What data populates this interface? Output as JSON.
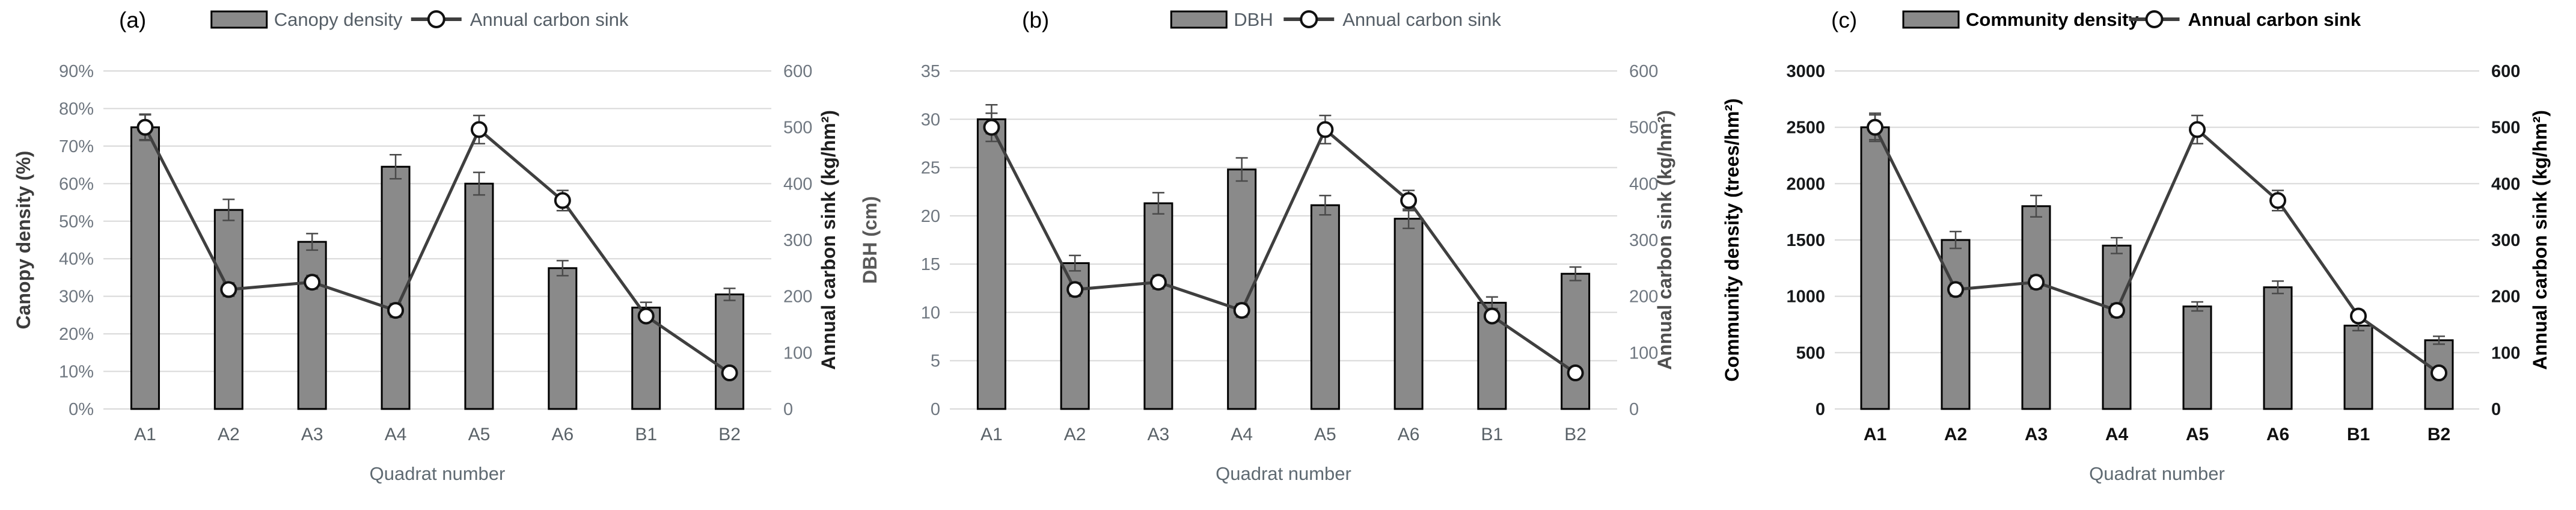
{
  "figure": {
    "description": "Three-panel dual-axis figure: grey bars with error bars (stand attribute, left axis) overlaid with annual carbon sink line with open circle markers (right axis) across eight quadrats",
    "x_axis_title": "Quadrat number",
    "categories": [
      "A1",
      "A2",
      "A3",
      "A4",
      "A5",
      "A6",
      "B1",
      "B2"
    ]
  },
  "colors": {
    "bar_fill": "#8a8a8a",
    "bar_stroke": "#000000",
    "line": "#3f3f3f",
    "marker_fill": "#ffffff",
    "marker_stroke": "#111111",
    "grid": "#d8d8d8",
    "error_bar": "#4a4a4a",
    "background": "#ffffff"
  },
  "chart_data": [
    {
      "id": "a",
      "panel_label": "(a)",
      "type": "bar+line (dual axis)",
      "categories": [
        "A1",
        "A2",
        "A3",
        "A4",
        "A5",
        "A6",
        "B1",
        "B2"
      ],
      "x_axis_title": "Quadrat number",
      "bar_series": {
        "name": "Canopy density",
        "axis": "left",
        "values": [
          75,
          53,
          44.5,
          64.5,
          60,
          37.5,
          27,
          30.5
        ],
        "errors": [
          3.5,
          2.8,
          2.2,
          3.2,
          3.0,
          2.0,
          1.4,
          1.6
        ]
      },
      "line_series": {
        "name": "Annual carbon sink",
        "axis": "right",
        "values": [
          500,
          212,
          225,
          175,
          496,
          370,
          165,
          64
        ],
        "errors": [
          22,
          12,
          12,
          12,
          25,
          18,
          10,
          8
        ]
      },
      "left_axis": {
        "title": "Canopy density (%)",
        "min": 0,
        "max": 90,
        "step": 10,
        "tick_labels": [
          "0%",
          "10%",
          "20%",
          "30%",
          "40%",
          "50%",
          "60%",
          "70%",
          "80%",
          "90%"
        ]
      },
      "right_axis": {
        "title": "Annual carbon sink (kg/hm²)",
        "min": 0,
        "max": 600,
        "step": 100,
        "tick_labels": [
          "0",
          "100",
          "200",
          "300",
          "400",
          "500",
          "600"
        ]
      },
      "grid": "horizontal"
    },
    {
      "id": "b",
      "panel_label": "(b)",
      "type": "bar+line (dual axis)",
      "categories": [
        "A1",
        "A2",
        "A3",
        "A4",
        "A5",
        "A6",
        "B1",
        "B2"
      ],
      "x_axis_title": "Quadrat number",
      "bar_series": {
        "name": "DBH",
        "axis": "left",
        "values": [
          30,
          15.1,
          21.3,
          24.8,
          21.1,
          19.7,
          11,
          14
        ],
        "errors": [
          1.5,
          0.8,
          1.1,
          1.2,
          1.0,
          1.0,
          0.6,
          0.7
        ]
      },
      "line_series": {
        "name": "Annual carbon sink",
        "axis": "right",
        "values": [
          500,
          212,
          225,
          175,
          496,
          370,
          165,
          64
        ],
        "errors": [
          25,
          12,
          12,
          12,
          25,
          18,
          10,
          8
        ]
      },
      "left_axis": {
        "title": "DBH (cm)",
        "min": 0,
        "max": 35,
        "step": 5,
        "tick_labels": [
          "0",
          "5",
          "10",
          "15",
          "20",
          "25",
          "30",
          "35"
        ]
      },
      "right_axis": {
        "title": "Annual carbon sink (kg/hm²)",
        "min": 0,
        "max": 600,
        "step": 100,
        "tick_labels": [
          "0",
          "100",
          "200",
          "300",
          "400",
          "500",
          "600"
        ]
      },
      "grid": "horizontal"
    },
    {
      "id": "c",
      "panel_label": "(c)",
      "type": "bar+line (dual axis)",
      "categories": [
        "A1",
        "A2",
        "A3",
        "A4",
        "A5",
        "A6",
        "B1",
        "B2"
      ],
      "x_axis_title": "Quadrat number",
      "bar_series": {
        "name": "Community density",
        "axis": "left",
        "values": [
          2500,
          1500,
          1800,
          1450,
          910,
          1080,
          740,
          610
        ],
        "errors": [
          110,
          75,
          95,
          70,
          40,
          55,
          45,
          35
        ]
      },
      "line_series": {
        "name": "Annual carbon sink",
        "axis": "right",
        "values": [
          500,
          212,
          225,
          175,
          496,
          370,
          165,
          64
        ],
        "errors": [
          25,
          12,
          12,
          12,
          25,
          18,
          10,
          8
        ]
      },
      "left_axis": {
        "title": "Community density (trees/hm²)",
        "min": 0,
        "max": 3000,
        "step": 500,
        "tick_labels": [
          "0",
          "500",
          "1000",
          "1500",
          "2000",
          "2500",
          "3000"
        ]
      },
      "right_axis": {
        "title": "Annual carbon sink (kg/hm²)",
        "min": 0,
        "max": 600,
        "step": 100,
        "tick_labels": [
          "0",
          "100",
          "200",
          "300",
          "400",
          "500",
          "600"
        ]
      },
      "grid": "horizontal"
    }
  ]
}
